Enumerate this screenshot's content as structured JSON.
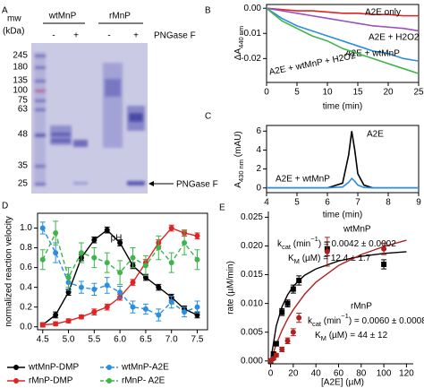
{
  "gel": {
    "panel_label": "A",
    "mw_label": [
      "mw",
      "(kDa)"
    ],
    "groups": [
      "wtMnP",
      "rMnP"
    ],
    "lane_signs": [
      "-",
      "+",
      "-",
      "+"
    ],
    "treatment": "PNGase F",
    "markers": [
      245,
      180,
      135,
      100,
      75,
      63,
      48,
      35,
      25
    ],
    "arrow_label": "PNGase F"
  },
  "chart_data": [
    {
      "type": "line",
      "panel_label": "B",
      "x_label": "time (min)",
      "y_label": {
        "runs": [
          {
            "text": "ΔA"
          },
          {
            "text": "440 nm",
            "sub": true
          }
        ]
      },
      "xlim": [
        0,
        25
      ],
      "ylim": [
        -0.0295,
        0.0015
      ],
      "xticks": [
        0,
        5,
        10,
        15,
        20,
        25
      ],
      "yticks": [
        {
          "value": 0,
          "label": "0.00"
        },
        {
          "value": -0.01,
          "label": "-0.01"
        },
        {
          "value": -0.02,
          "label": "-0.02"
        }
      ],
      "x": [
        0,
        2.5,
        5,
        7.5,
        10,
        12.5,
        15,
        17.5,
        20,
        22.5,
        25
      ],
      "series": [
        {
          "name": "A2E only",
          "color": "#e02424",
          "values": [
            0,
            -0.0005,
            -0.001,
            -0.001,
            -0.0015,
            -0.002,
            -0.002,
            -0.0025,
            -0.0025,
            -0.003,
            -0.003
          ]
        },
        {
          "name": "A2E + H2O2",
          "color": "#9b4fc0",
          "values": [
            0,
            -0.001,
            -0.002,
            -0.003,
            -0.004,
            -0.005,
            -0.006,
            -0.007,
            -0.0075,
            -0.008,
            -0.009
          ]
        },
        {
          "name": "A2E + wtMnP",
          "color": "#2b8fe0",
          "values": [
            0,
            -0.004,
            -0.007,
            -0.009,
            -0.011,
            -0.013,
            -0.015,
            -0.017,
            -0.018,
            -0.02,
            -0.021
          ]
        },
        {
          "name": "A2E + wtMnP + H2O2",
          "color": "#3db54a",
          "values": [
            0,
            -0.005,
            -0.008,
            -0.011,
            -0.013,
            -0.016,
            -0.018,
            -0.02,
            -0.022,
            -0.024,
            -0.026
          ]
        }
      ]
    },
    {
      "type": "line",
      "panel_label": "C",
      "x_label": "time (min)",
      "y_label": {
        "runs": [
          {
            "text": "A"
          },
          {
            "text": "430 nm",
            "sub": true
          },
          {
            "text": " (mAU)"
          }
        ]
      },
      "xlim": [
        4,
        9
      ],
      "ylim": [
        -0.5,
        6.6
      ],
      "xticks": [
        4,
        5,
        6,
        7,
        8,
        9
      ],
      "yticks": [
        0,
        2,
        4,
        6
      ],
      "x": [
        4,
        5,
        6,
        6.5,
        6.7,
        6.8,
        6.9,
        7.0,
        7.2,
        7.5,
        8,
        9
      ],
      "series": [
        {
          "name": "A2E",
          "color": "#000000",
          "values": [
            0,
            0,
            0,
            0.5,
            3.5,
            6,
            4,
            1.5,
            0.3,
            0,
            0,
            0
          ]
        },
        {
          "name": "A2E + wtMnP",
          "color": "#2b8fe0",
          "values": [
            0,
            0,
            0,
            0.1,
            0.6,
            1.0,
            0.7,
            0.3,
            0.05,
            0,
            0,
            0
          ]
        }
      ]
    },
    {
      "type": "line",
      "panel_label": "D",
      "x_label": "pH",
      "y_label": "normalized reaction velocity",
      "xlim": [
        4.4,
        7.7
      ],
      "ylim": [
        -0.03,
        1.15
      ],
      "xticks": [
        4.5,
        {
          "value": 5,
          "label": "5.0"
        },
        5.5,
        {
          "value": 6,
          "label": "6.0"
        },
        6.5,
        {
          "value": 7,
          "label": "7.0"
        },
        7.5
      ],
      "yticks": [
        {
          "value": 0,
          "label": "0.0"
        },
        0.2,
        0.4,
        0.6,
        0.8,
        {
          "value": 1,
          "label": "1.0"
        }
      ],
      "x": [
        4.5,
        4.75,
        5.0,
        5.25,
        5.5,
        5.75,
        6.0,
        6.25,
        6.5,
        6.75,
        7.0,
        7.25,
        7.5
      ],
      "series": [
        {
          "name": "wtMnP-DMP",
          "color": "#000000",
          "values": [
            0.02,
            0.12,
            0.35,
            0.7,
            0.88,
            0.98,
            0.85,
            0.62,
            0.5,
            0.4,
            0.3,
            0.18,
            0.12
          ],
          "errors": [
            0.02,
            0.03,
            0.03,
            0.03,
            0.03,
            0.03,
            0.03,
            0.03,
            0.03,
            0.03,
            0.03,
            0.03,
            0.03
          ]
        },
        {
          "name": "rMnP-DMP",
          "color": "#e02424",
          "values": [
            0.02,
            0.03,
            0.06,
            0.1,
            0.15,
            0.2,
            0.3,
            0.45,
            0.65,
            0.85,
            1.0,
            0.95,
            0.92
          ],
          "errors": [
            0.02,
            0.02,
            0.02,
            0.02,
            0.03,
            0.03,
            0.03,
            0.03,
            0.03,
            0.03,
            0.03,
            0.03,
            0.03
          ]
        },
        {
          "name": "wtMnP-A2E",
          "color": "#2b8fe0",
          "dash": true,
          "values": [
            1.0,
            0.75,
            0.45,
            0.4,
            0.38,
            0.42,
            0.35,
            0.2,
            0.18,
            0.12,
            0.25,
            0.15,
            0.2
          ],
          "errors": [
            0.06,
            0.1,
            0.08,
            0.06,
            0.06,
            0.08,
            0.06,
            0.06,
            0.05,
            0.06,
            0.06,
            0.05,
            0.06
          ]
        },
        {
          "name": "rMnP- A2E",
          "color": "#3db54a",
          "dash": true,
          "values": [
            0.68,
            0.95,
            0.5,
            0.75,
            0.7,
            0.65,
            0.55,
            0.7,
            0.62,
            0.8,
            0.65,
            0.85,
            0.68
          ],
          "errors": [
            0.1,
            0.12,
            0.1,
            0.1,
            0.1,
            0.1,
            0.12,
            0.1,
            0.1,
            0.12,
            0.1,
            0.12,
            0.1
          ]
        }
      ]
    },
    {
      "type": "scatter",
      "panel_label": "E",
      "x_label": "[A2E] (µM)",
      "y_label": "rate (µM/min)",
      "xlim": [
        -2,
        126
      ],
      "ylim": [
        -0.0005,
        0.026
      ],
      "xticks": [
        0,
        20,
        40,
        60,
        80,
        100,
        120
      ],
      "yticks": [
        {
          "value": 0,
          "label": "0.000"
        },
        {
          "value": 0.005,
          "label": "0.005"
        },
        {
          "value": 0.01,
          "label": "0.010"
        },
        {
          "value": 0.015,
          "label": "0.015"
        },
        {
          "value": 0.02,
          "label": "0.020"
        },
        {
          "value": 0.025,
          "label": "0.025"
        }
      ],
      "series": [
        {
          "name": "wtMnP",
          "color": "#000000",
          "marker": "square",
          "x": [
            0,
            2.5,
            5,
            10,
            15,
            20,
            25,
            50,
            100
          ],
          "values": [
            0,
            0.0012,
            0.003,
            0.0085,
            0.01,
            0.0125,
            0.014,
            0.0195,
            0.0168
          ],
          "errors": [
            0,
            0.0003,
            0.0004,
            0.0006,
            0.0006,
            0.0007,
            0.0008,
            0.0012,
            0.0008
          ]
        },
        {
          "name": "rMnP",
          "color": "#b02020",
          "marker": "circle",
          "x": [
            0,
            2.5,
            5,
            10,
            15,
            20,
            25,
            50,
            100
          ],
          "values": [
            0,
            0.0004,
            0.001,
            0.002,
            0.0035,
            0.005,
            0.0075,
            0.019,
            0.0195
          ],
          "errors": [
            0,
            0.0002,
            0.0003,
            0.0004,
            0.0005,
            0.0006,
            0.0008,
            0.0025,
            0.001
          ]
        }
      ],
      "fits": [
        {
          "color": "#000000",
          "x": [
            0,
            5,
            10,
            15,
            20,
            30,
            40,
            60,
            80,
            100,
            120
          ],
          "values": [
            0,
            0.0061,
            0.0094,
            0.0115,
            0.013,
            0.0149,
            0.016,
            0.0174,
            0.0182,
            0.0187,
            0.019
          ]
        },
        {
          "color": "#b02020",
          "x": [
            0,
            5,
            10,
            15,
            20,
            30,
            40,
            60,
            80,
            100,
            120
          ],
          "values": [
            0,
            0.0029,
            0.0053,
            0.0073,
            0.0089,
            0.0116,
            0.0137,
            0.0166,
            0.0185,
            0.0199,
            0.021
          ]
        }
      ],
      "annotations": [
        {
          "color": "#000000",
          "runs": [
            {
              "text": "k"
            },
            {
              "text": "cat",
              "sub": true
            },
            {
              "text": " (min"
            },
            {
              "text": "−1",
              "sup": true
            },
            {
              "text": ") = 0.0042 ± 0.0002"
            }
          ]
        },
        {
          "color": "#000000",
          "runs": [
            {
              "text": "K"
            },
            {
              "text": "M",
              "sub": true
            },
            {
              "text": " (µM) = 12.4 ± 1.7"
            }
          ]
        },
        {
          "color": "#b02020",
          "runs": [
            {
              "text": "k"
            },
            {
              "text": "cat",
              "sub": true
            },
            {
              "text": " (min"
            },
            {
              "text": "−1",
              "sup": true
            },
            {
              "text": ") = 0.0060 ± 0.0008"
            }
          ]
        },
        {
          "color": "#b02020",
          "runs": [
            {
              "text": "K"
            },
            {
              "text": "M",
              "sub": true
            },
            {
              "text": " (µM) = 44 ± 12"
            }
          ]
        }
      ]
    }
  ]
}
